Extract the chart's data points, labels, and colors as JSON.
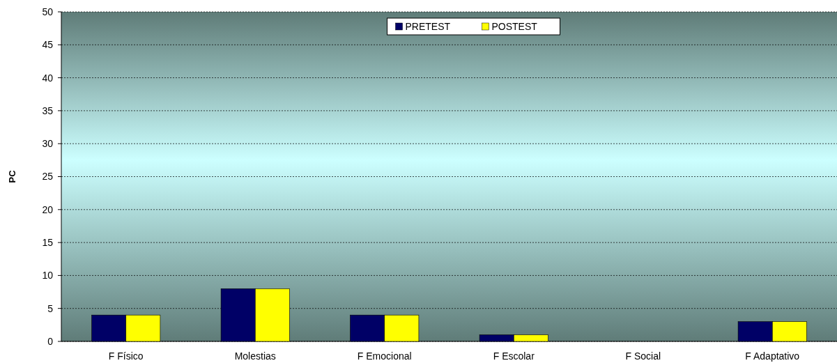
{
  "chart_data": {
    "type": "bar",
    "ylabel": "PC",
    "categories": [
      "F Físico",
      "Molestias",
      "F Emocional",
      "F Escolar",
      "F Social",
      "F Adaptativo"
    ],
    "series": [
      {
        "name": "PRETEST",
        "color": "#000066",
        "values": [
          4,
          8,
          4,
          1,
          0,
          3
        ]
      },
      {
        "name": "POSTEST",
        "color": "#ffff00",
        "values": [
          4,
          8,
          4,
          1,
          0,
          3
        ]
      }
    ],
    "ylim": [
      0,
      50
    ],
    "yticks": [
      0,
      5,
      10,
      15,
      20,
      25,
      30,
      35,
      40,
      45,
      50
    ],
    "grid": "y",
    "legend": "top"
  }
}
